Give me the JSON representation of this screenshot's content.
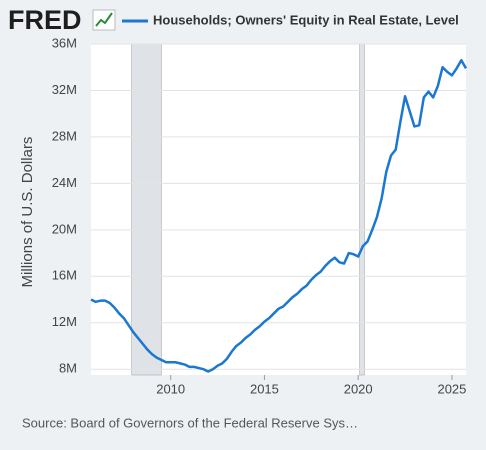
{
  "logo": "FRED",
  "chart_data": {
    "type": "line",
    "y_label": "Millions of U.S. Dollars",
    "source": "Source: Board of Governors of the Federal Reserve Sys…",
    "x": [
      2005.75,
      2006,
      2006.25,
      2006.5,
      2006.75,
      2007,
      2007.25,
      2007.5,
      2007.75,
      2008,
      2008.25,
      2008.5,
      2008.75,
      2009,
      2009.25,
      2009.5,
      2009.75,
      2010,
      2010.25,
      2010.5,
      2010.75,
      2011,
      2011.25,
      2011.5,
      2011.75,
      2012,
      2012.25,
      2012.5,
      2012.75,
      2013,
      2013.25,
      2013.5,
      2013.75,
      2014,
      2014.25,
      2014.5,
      2014.75,
      2015,
      2015.25,
      2015.5,
      2015.75,
      2016,
      2016.25,
      2016.5,
      2016.75,
      2017,
      2017.25,
      2017.5,
      2017.75,
      2018,
      2018.25,
      2018.5,
      2018.75,
      2019,
      2019.25,
      2019.5,
      2019.75,
      2020,
      2020.25,
      2020.5,
      2020.75,
      2021,
      2021.25,
      2021.5,
      2021.75,
      2022,
      2022.25,
      2022.5,
      2022.75,
      2023,
      2023.25,
      2023.5,
      2023.75,
      2024,
      2024.25,
      2024.5,
      2024.75,
      2025,
      2025.25,
      2025.5,
      2025.75
    ],
    "series": [
      {
        "name": "Households; Owners' Equity in Real Estate, Level",
        "color": "#1b78d0",
        "values": [
          14000000,
          13800000,
          13900000,
          13900000,
          13700000,
          13300000,
          12800000,
          12400000,
          11800000,
          11200000,
          10700000,
          10200000,
          9700000,
          9300000,
          9000000,
          8800000,
          8600000,
          8600000,
          8600000,
          8500000,
          8400000,
          8200000,
          8200000,
          8100000,
          8000000,
          7800000,
          8000000,
          8300000,
          8500000,
          8900000,
          9500000,
          10000000,
          10300000,
          10700000,
          11000000,
          11400000,
          11700000,
          12100000,
          12400000,
          12800000,
          13200000,
          13400000,
          13800000,
          14200000,
          14500000,
          14900000,
          15200000,
          15700000,
          16100000,
          16400000,
          16900000,
          17300000,
          17600000,
          17200000,
          17100000,
          18000000,
          17900000,
          17700000,
          18600000,
          19000000,
          20000000,
          21100000,
          22700000,
          25000000,
          26400000,
          26900000,
          29300000,
          31500000,
          30200000,
          28900000,
          29000000,
          31400000,
          31900000,
          31400000,
          32400000,
          34000000,
          33600000,
          33300000,
          33900000,
          34600000,
          33900000
        ]
      }
    ],
    "xlim": [
      2005.75,
      2025.75
    ],
    "xticks": [
      2010,
      2015,
      2020,
      2025
    ],
    "ylim": [
      7500000,
      36000000
    ],
    "yticks": [
      {
        "value": 8000000,
        "label": "8M"
      },
      {
        "value": 12000000,
        "label": "12M"
      },
      {
        "value": 16000000,
        "label": "16M"
      },
      {
        "value": 20000000,
        "label": "20M"
      },
      {
        "value": 24000000,
        "label": "24M"
      },
      {
        "value": 28000000,
        "label": "28M"
      },
      {
        "value": 32000000,
        "label": "32M"
      },
      {
        "value": 36000000,
        "label": "36M"
      }
    ],
    "recessions": [
      [
        2007.92,
        2009.5
      ],
      [
        2020.08,
        2020.33
      ]
    ],
    "recession_color": "#dfe3e8",
    "grid": true
  }
}
